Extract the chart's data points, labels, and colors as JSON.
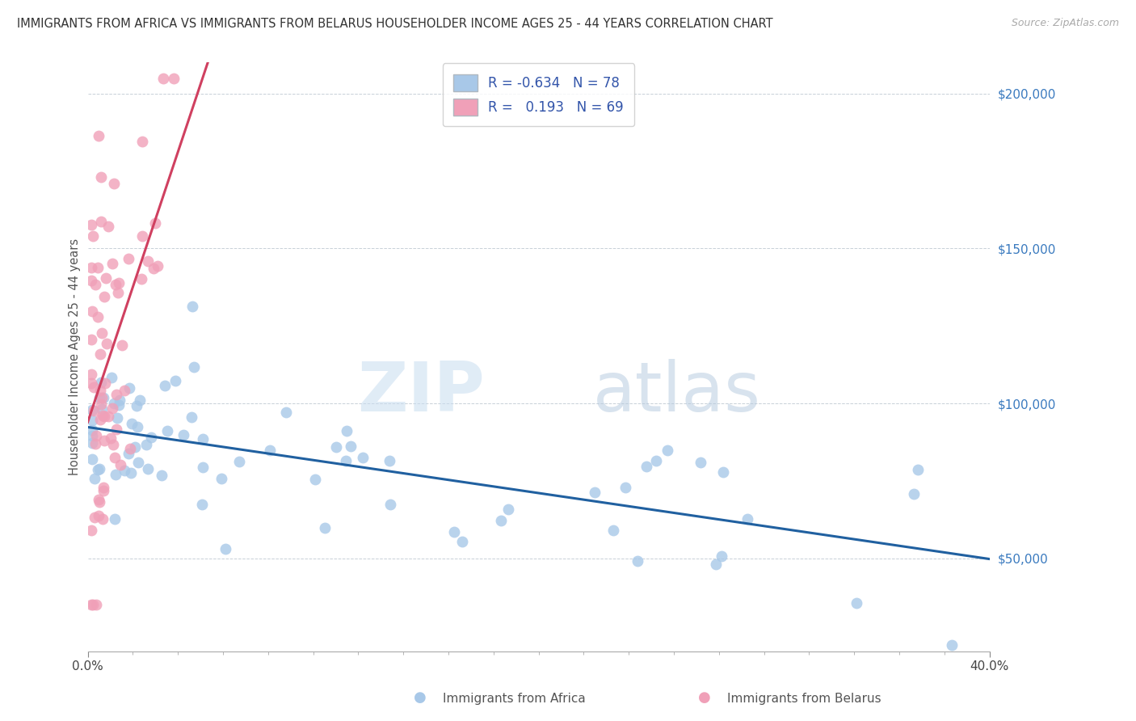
{
  "title": "IMMIGRANTS FROM AFRICA VS IMMIGRANTS FROM BELARUS HOUSEHOLDER INCOME AGES 25 - 44 YEARS CORRELATION CHART",
  "source": "Source: ZipAtlas.com",
  "ylabel": "Householder Income Ages 25 - 44 years",
  "xmin": 0.0,
  "xmax": 40.0,
  "ymin": 20000,
  "ymax": 210000,
  "legend_africa_r": "-0.634",
  "legend_africa_n": "78",
  "legend_belarus_r": "0.193",
  "legend_belarus_n": "69",
  "africa_color": "#a8c8e8",
  "africa_line_color": "#2060a0",
  "belarus_color": "#f0a0b8",
  "belarus_line_color": "#d04060",
  "ref_line_color": "#c0c8d0",
  "ytick_vals": [
    50000,
    100000,
    150000,
    200000
  ],
  "ytick_labels": [
    "$50,000",
    "$100,000",
    "$150,000",
    "$200,000"
  ],
  "africa_seed": 12,
  "belarus_seed": 7
}
